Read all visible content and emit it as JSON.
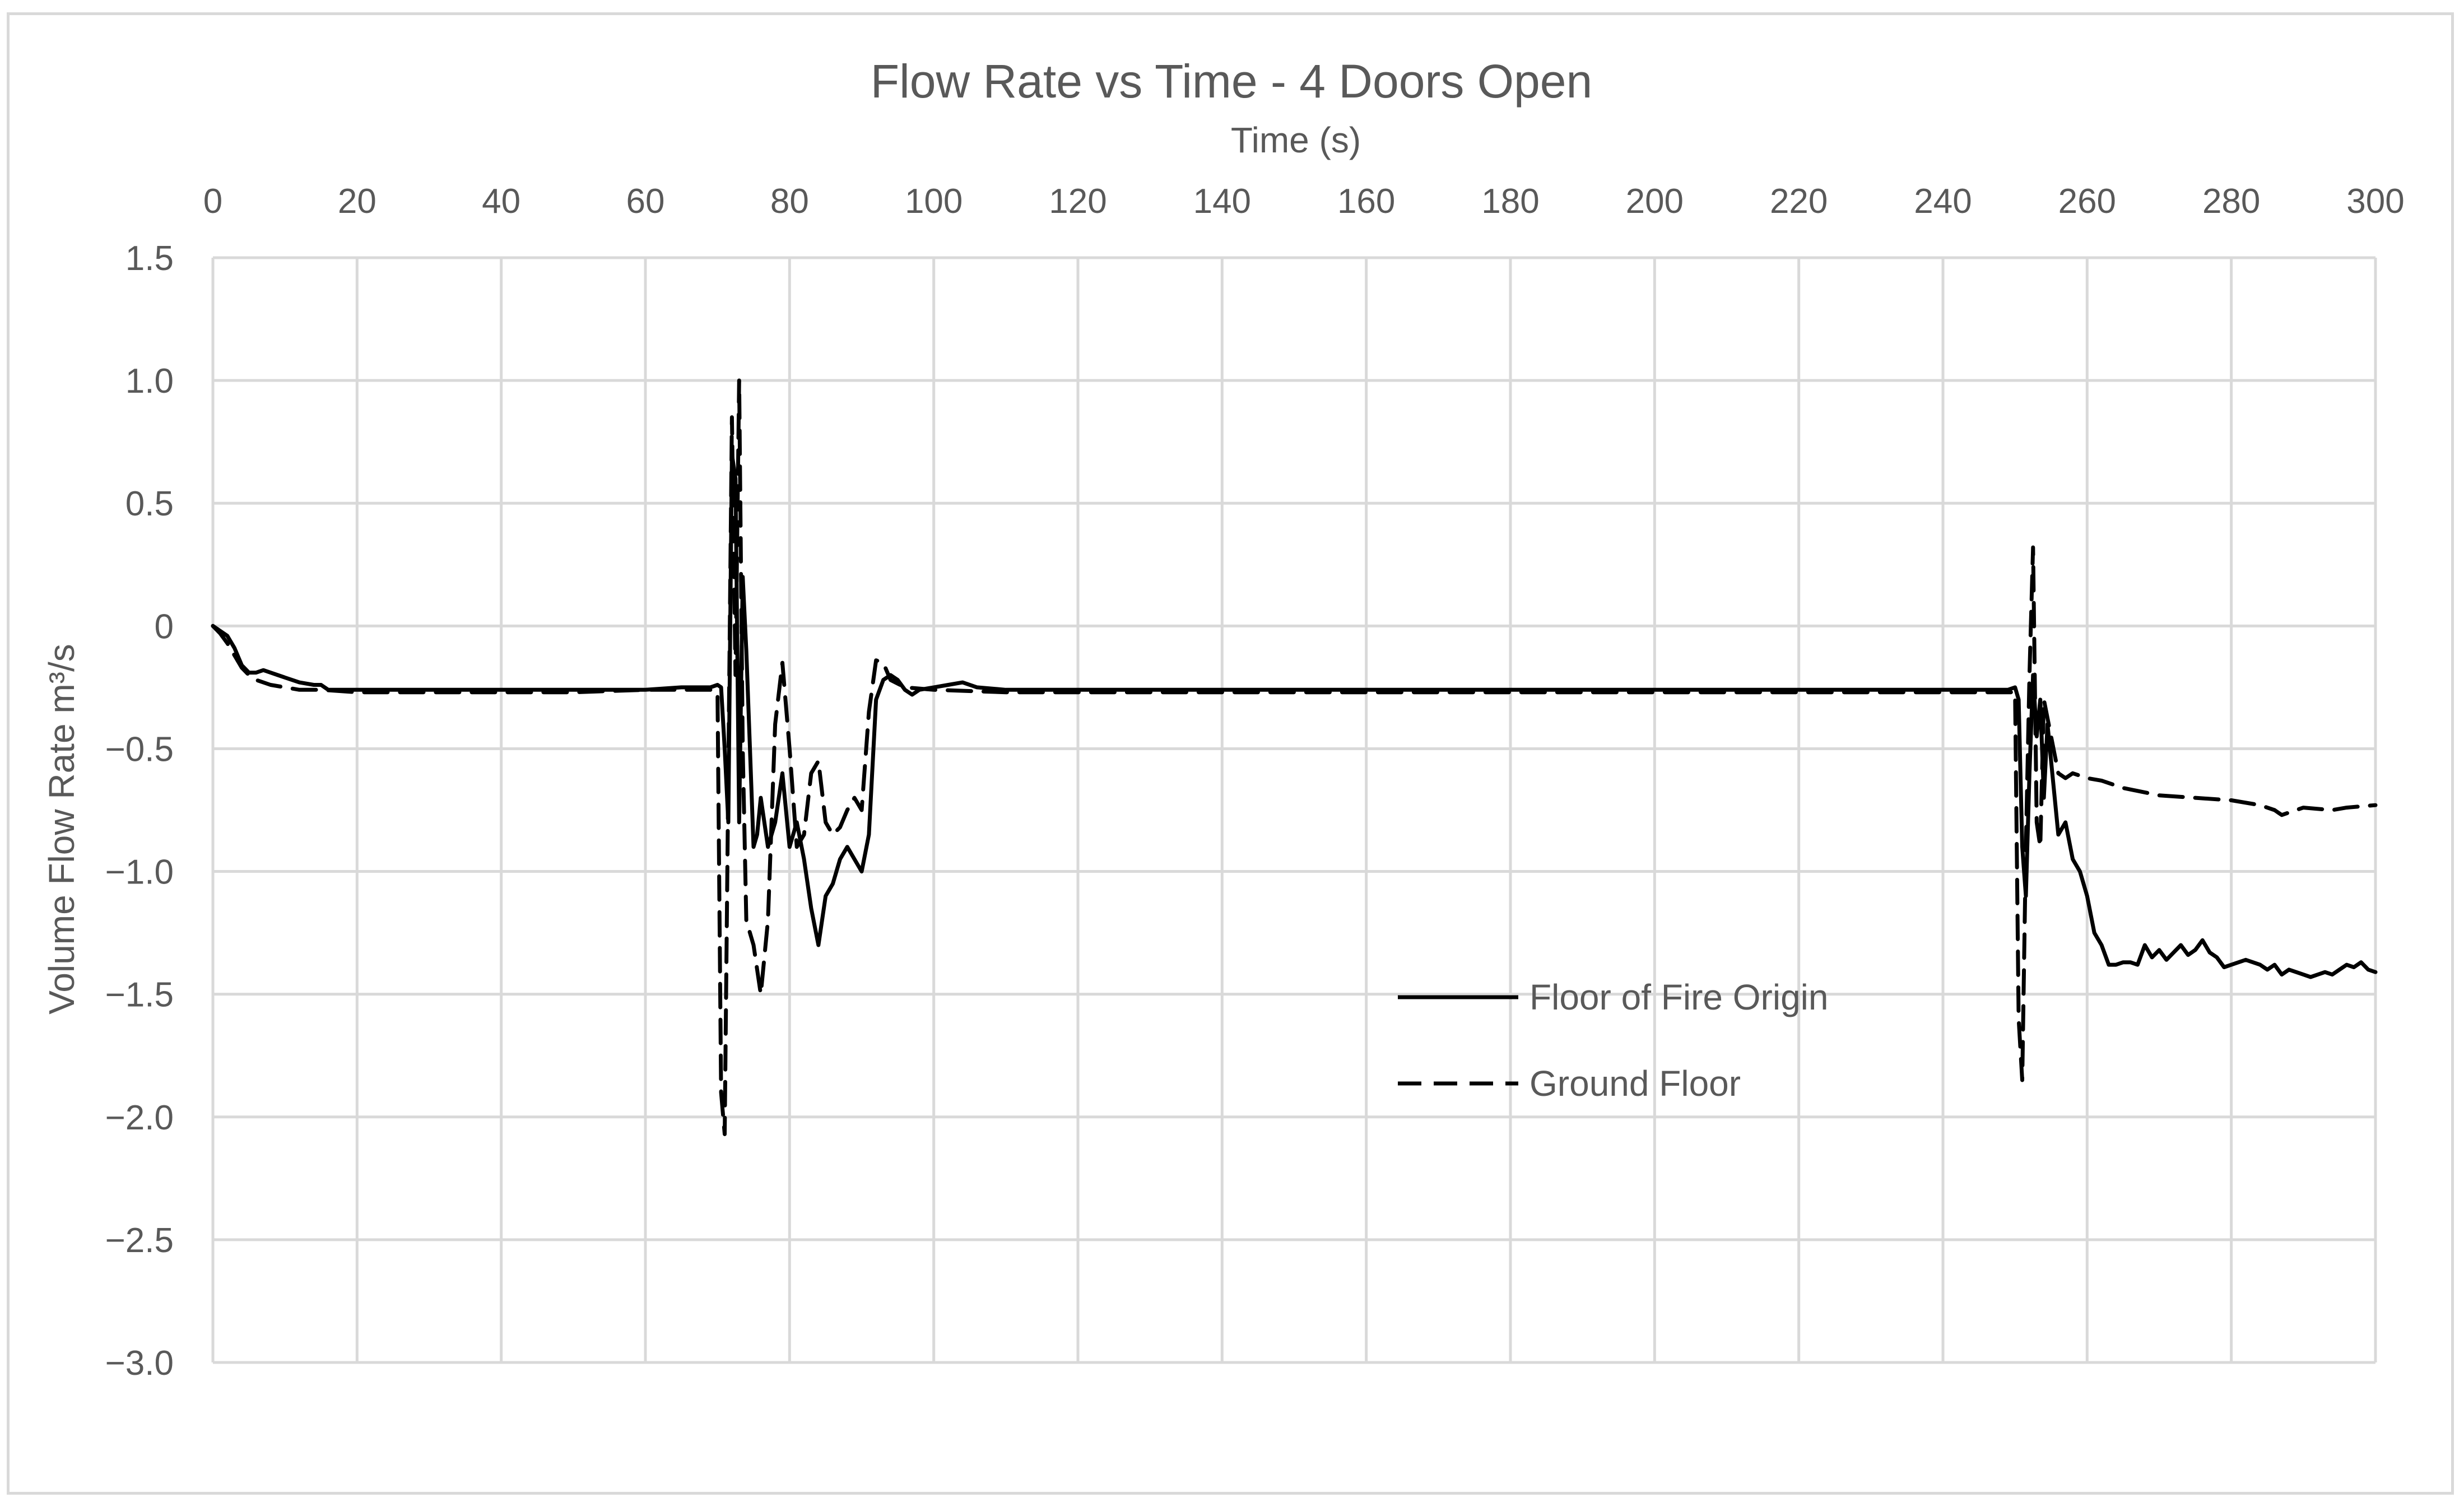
{
  "chart_data": {
    "type": "line",
    "title": "Flow Rate vs Time - 4 Doors Open",
    "xlabel": "Time (s)",
    "ylabel": "Volume Flow Rate m³/s",
    "xlim": [
      0,
      300
    ],
    "ylim": [
      -3.0,
      1.5
    ],
    "x_ticks": [
      "0",
      "20",
      "40",
      "60",
      "80",
      "100",
      "120",
      "140",
      "160",
      "180",
      "200",
      "220",
      "240",
      "260",
      "280",
      "300"
    ],
    "y_ticks": [
      "1.5",
      "1.0",
      "0.5",
      "0",
      "−0.5",
      "−1.0",
      "−1.5",
      "−2.0",
      "−2.5",
      "−3.0"
    ],
    "x_axis_position": "top",
    "grid": true,
    "legend_position": "lower-right-center",
    "series": [
      {
        "name": "Floor of Fire Origin",
        "style": "solid",
        "color": "#000000",
        "points": [
          [
            0,
            0
          ],
          [
            1,
            -0.02
          ],
          [
            2,
            -0.04
          ],
          [
            3,
            -0.09
          ],
          [
            4,
            -0.16
          ],
          [
            5,
            -0.19
          ],
          [
            6,
            -0.19
          ],
          [
            7,
            -0.18
          ],
          [
            8,
            -0.19
          ],
          [
            9,
            -0.2
          ],
          [
            10,
            -0.21
          ],
          [
            12,
            -0.23
          ],
          [
            14,
            -0.24
          ],
          [
            15,
            -0.24
          ],
          [
            16,
            -0.26
          ],
          [
            18,
            -0.26
          ],
          [
            20,
            -0.26
          ],
          [
            30,
            -0.26
          ],
          [
            40,
            -0.26
          ],
          [
            50,
            -0.26
          ],
          [
            60,
            -0.26
          ],
          [
            65,
            -0.25
          ],
          [
            69,
            -0.25
          ],
          [
            70,
            -0.24
          ],
          [
            70.5,
            -0.25
          ],
          [
            71,
            -0.5
          ],
          [
            71.5,
            -0.8
          ],
          [
            72,
            0.7
          ],
          [
            72.5,
            0.6
          ],
          [
            73,
            -0.8
          ],
          [
            73.5,
            0.2
          ],
          [
            74,
            -0.1
          ],
          [
            74.5,
            -0.5
          ],
          [
            75,
            -0.9
          ],
          [
            75.5,
            -0.85
          ],
          [
            76,
            -0.7
          ],
          [
            77,
            -0.9
          ],
          [
            78,
            -0.8
          ],
          [
            79,
            -0.6
          ],
          [
            80,
            -0.9
          ],
          [
            81,
            -0.8
          ],
          [
            82,
            -0.95
          ],
          [
            83,
            -1.15
          ],
          [
            84,
            -1.3
          ],
          [
            85,
            -1.1
          ],
          [
            86,
            -1.05
          ],
          [
            87,
            -0.95
          ],
          [
            88,
            -0.9
          ],
          [
            89,
            -0.95
          ],
          [
            90,
            -1.0
          ],
          [
            91,
            -0.85
          ],
          [
            92,
            -0.3
          ],
          [
            93,
            -0.22
          ],
          [
            94,
            -0.2
          ],
          [
            95,
            -0.22
          ],
          [
            96,
            -0.26
          ],
          [
            97,
            -0.28
          ],
          [
            98,
            -0.26
          ],
          [
            100,
            -0.25
          ],
          [
            102,
            -0.24
          ],
          [
            104,
            -0.23
          ],
          [
            106,
            -0.25
          ],
          [
            110,
            -0.26
          ],
          [
            120,
            -0.26
          ],
          [
            140,
            -0.26
          ],
          [
            160,
            -0.26
          ],
          [
            180,
            -0.26
          ],
          [
            200,
            -0.26
          ],
          [
            220,
            -0.26
          ],
          [
            240,
            -0.26
          ],
          [
            249,
            -0.26
          ],
          [
            250,
            -0.25
          ],
          [
            250.5,
            -0.3
          ],
          [
            251,
            -0.9
          ],
          [
            251.5,
            -1.1
          ],
          [
            252,
            -0.6
          ],
          [
            252.5,
            -0.2
          ],
          [
            253,
            -0.45
          ],
          [
            253.5,
            -0.3
          ],
          [
            254,
            -0.7
          ],
          [
            254.5,
            -0.4
          ],
          [
            255,
            -0.55
          ],
          [
            256,
            -0.85
          ],
          [
            257,
            -0.8
          ],
          [
            258,
            -0.95
          ],
          [
            259,
            -1.0
          ],
          [
            260,
            -1.1
          ],
          [
            261,
            -1.25
          ],
          [
            262,
            -1.3
          ],
          [
            263,
            -1.38
          ],
          [
            264,
            -1.38
          ],
          [
            265,
            -1.37
          ],
          [
            266,
            -1.37
          ],
          [
            267,
            -1.38
          ],
          [
            268,
            -1.3
          ],
          [
            269,
            -1.35
          ],
          [
            270,
            -1.32
          ],
          [
            271,
            -1.36
          ],
          [
            272,
            -1.33
          ],
          [
            273,
            -1.3
          ],
          [
            274,
            -1.34
          ],
          [
            275,
            -1.32
          ],
          [
            276,
            -1.28
          ],
          [
            277,
            -1.33
          ],
          [
            278,
            -1.35
          ],
          [
            279,
            -1.39
          ],
          [
            280,
            -1.38
          ],
          [
            281,
            -1.37
          ],
          [
            282,
            -1.36
          ],
          [
            283,
            -1.37
          ],
          [
            284,
            -1.38
          ],
          [
            285,
            -1.4
          ],
          [
            286,
            -1.38
          ],
          [
            287,
            -1.42
          ],
          [
            288,
            -1.4
          ],
          [
            289,
            -1.41
          ],
          [
            290,
            -1.42
          ],
          [
            291,
            -1.43
          ],
          [
            292,
            -1.42
          ],
          [
            293,
            -1.41
          ],
          [
            294,
            -1.42
          ],
          [
            295,
            -1.4
          ],
          [
            296,
            -1.38
          ],
          [
            297,
            -1.39
          ],
          [
            298,
            -1.37
          ],
          [
            299,
            -1.4
          ],
          [
            300,
            -1.41
          ]
        ]
      },
      {
        "name": "Ground Floor",
        "style": "dashed",
        "color": "#000000",
        "points": [
          [
            0,
            0
          ],
          [
            1,
            -0.03
          ],
          [
            2,
            -0.07
          ],
          [
            3,
            -0.12
          ],
          [
            4,
            -0.17
          ],
          [
            5,
            -0.2
          ],
          [
            6,
            -0.22
          ],
          [
            8,
            -0.24
          ],
          [
            10,
            -0.25
          ],
          [
            12,
            -0.26
          ],
          [
            15,
            -0.26
          ],
          [
            20,
            -0.27
          ],
          [
            30,
            -0.27
          ],
          [
            40,
            -0.27
          ],
          [
            50,
            -0.27
          ],
          [
            60,
            -0.26
          ],
          [
            68,
            -0.26
          ],
          [
            69,
            -0.26
          ],
          [
            70,
            -0.27
          ],
          [
            70.5,
            -1.9
          ],
          [
            71,
            -2.07
          ],
          [
            71.5,
            -0.6
          ],
          [
            72,
            0.85
          ],
          [
            72.5,
            -0.2
          ],
          [
            73,
            1.0
          ],
          [
            73.5,
            -0.5
          ],
          [
            74,
            -1.2
          ],
          [
            75,
            -1.3
          ],
          [
            76,
            -1.5
          ],
          [
            77,
            -1.2
          ],
          [
            78,
            -0.4
          ],
          [
            79,
            -0.15
          ],
          [
            80,
            -0.5
          ],
          [
            81,
            -0.9
          ],
          [
            82,
            -0.85
          ],
          [
            83,
            -0.6
          ],
          [
            84,
            -0.55
          ],
          [
            85,
            -0.8
          ],
          [
            86,
            -0.85
          ],
          [
            87,
            -0.82
          ],
          [
            88,
            -0.75
          ],
          [
            89,
            -0.7
          ],
          [
            90,
            -0.75
          ],
          [
            91,
            -0.35
          ],
          [
            92,
            -0.14
          ],
          [
            93,
            -0.15
          ],
          [
            94,
            -0.22
          ],
          [
            96,
            -0.25
          ],
          [
            100,
            -0.26
          ],
          [
            110,
            -0.27
          ],
          [
            120,
            -0.27
          ],
          [
            140,
            -0.27
          ],
          [
            160,
            -0.27
          ],
          [
            180,
            -0.27
          ],
          [
            200,
            -0.27
          ],
          [
            220,
            -0.27
          ],
          [
            240,
            -0.27
          ],
          [
            249,
            -0.27
          ],
          [
            250,
            -0.27
          ],
          [
            250.5,
            -1.6
          ],
          [
            251,
            -1.85
          ],
          [
            251.5,
            -0.9
          ],
          [
            252,
            -0.2
          ],
          [
            252.5,
            0.32
          ],
          [
            253,
            -0.8
          ],
          [
            253.5,
            -0.9
          ],
          [
            254,
            -0.3
          ],
          [
            255,
            -0.45
          ],
          [
            256,
            -0.6
          ],
          [
            257,
            -0.62
          ],
          [
            258,
            -0.6
          ],
          [
            260,
            -0.62
          ],
          [
            262,
            -0.63
          ],
          [
            265,
            -0.66
          ],
          [
            270,
            -0.69
          ],
          [
            275,
            -0.7
          ],
          [
            280,
            -0.71
          ],
          [
            284,
            -0.73
          ],
          [
            286,
            -0.75
          ],
          [
            287,
            -0.77
          ],
          [
            288,
            -0.76
          ],
          [
            290,
            -0.74
          ],
          [
            294,
            -0.75
          ],
          [
            296,
            -0.74
          ],
          [
            300,
            -0.73
          ]
        ]
      }
    ]
  }
}
